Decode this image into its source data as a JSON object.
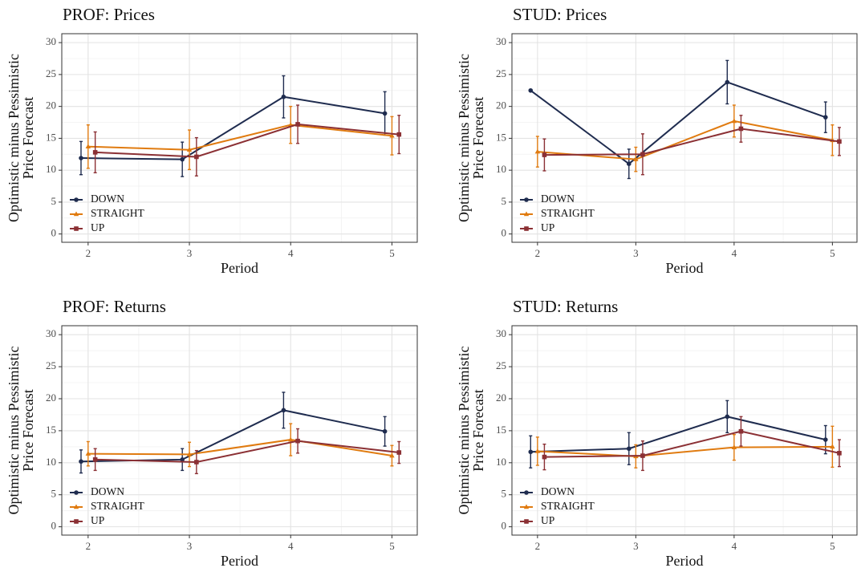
{
  "chart_data": [
    {
      "type": "line",
      "title": "PROF: Prices",
      "x_label": "Period",
      "y_label": [
        "Optimistic minus Pessimistic",
        "Price Forecast"
      ],
      "x": [
        2,
        3,
        4,
        5
      ],
      "xlim": [
        1.74,
        5.25
      ],
      "xticks": [
        2,
        3,
        4,
        5
      ],
      "ylim": [
        -1.3,
        31.4
      ],
      "yticks": [
        0,
        5,
        10,
        15,
        20,
        25,
        30
      ],
      "grid": true,
      "legend": "bottom-left",
      "series": [
        {
          "name": "DOWN",
          "color": "#1f2c4f",
          "marker": "circle",
          "values": [
            11.9,
            11.7,
            21.5,
            18.9
          ],
          "errors": [
            2.6,
            2.7,
            3.3,
            3.4
          ]
        },
        {
          "name": "STRAIGHT",
          "color": "#e07b10",
          "marker": "triangle",
          "values": [
            13.7,
            13.2,
            17.1,
            15.4
          ],
          "errors": [
            3.4,
            3.1,
            2.9,
            3.0
          ]
        },
        {
          "name": "UP",
          "color": "#8b3034",
          "marker": "square",
          "values": [
            12.8,
            12.1,
            17.2,
            15.6
          ],
          "errors": [
            3.2,
            3.0,
            3.0,
            3.0
          ]
        }
      ]
    },
    {
      "type": "line",
      "title": "STUD: Prices",
      "x_label": "Period",
      "y_label": [
        "Optimistic minus Pessimistic",
        "Price Forecast"
      ],
      "x": [
        2,
        3,
        4,
        5
      ],
      "xlim": [
        1.74,
        5.25
      ],
      "xticks": [
        2,
        3,
        4,
        5
      ],
      "ylim": [
        -1.3,
        31.4
      ],
      "yticks": [
        0,
        5,
        10,
        15,
        20,
        25,
        30
      ],
      "grid": true,
      "legend": "bottom-left",
      "series": [
        {
          "name": "DOWN",
          "color": "#1f2c4f",
          "marker": "circle",
          "values": [
            22.5,
            11.0,
            23.8,
            18.3
          ],
          "errors": [
            null,
            2.3,
            3.4,
            2.4
          ]
        },
        {
          "name": "STRAIGHT",
          "color": "#e07b10",
          "marker": "triangle",
          "values": [
            12.9,
            11.7,
            17.7,
            14.7
          ],
          "errors": [
            2.4,
            1.9,
            2.5,
            2.4
          ]
        },
        {
          "name": "UP",
          "color": "#8b3034",
          "marker": "square",
          "values": [
            12.4,
            12.5,
            16.5,
            14.5
          ],
          "errors": [
            2.5,
            3.2,
            2.1,
            2.2
          ]
        }
      ]
    },
    {
      "type": "line",
      "title": "PROF: Returns",
      "x_label": "Period",
      "y_label": [
        "Optimistic minus Pessimistic",
        "Price Forecast"
      ],
      "x": [
        2,
        3,
        4,
        5
      ],
      "xlim": [
        1.74,
        5.25
      ],
      "xticks": [
        2,
        3,
        4,
        5
      ],
      "ylim": [
        -1.3,
        31.4
      ],
      "yticks": [
        0,
        5,
        10,
        15,
        20,
        25,
        30
      ],
      "grid": true,
      "legend": "bottom-left",
      "series": [
        {
          "name": "DOWN",
          "color": "#1f2c4f",
          "marker": "circle",
          "values": [
            10.2,
            10.5,
            18.2,
            14.9
          ],
          "errors": [
            1.8,
            1.7,
            2.8,
            2.3
          ]
        },
        {
          "name": "STRAIGHT",
          "color": "#e07b10",
          "marker": "triangle",
          "values": [
            11.4,
            11.3,
            13.6,
            11.1
          ],
          "errors": [
            1.9,
            1.9,
            2.5,
            1.6
          ]
        },
        {
          "name": "UP",
          "color": "#8b3034",
          "marker": "square",
          "values": [
            10.5,
            10.1,
            13.4,
            11.6
          ],
          "errors": [
            1.7,
            1.8,
            1.9,
            1.7
          ]
        }
      ]
    },
    {
      "type": "line",
      "title": "STUD: Returns",
      "x_label": "Period",
      "y_label": [
        "Optimistic minus Pessimistic",
        "Price Forecast"
      ],
      "x": [
        2,
        3,
        4,
        5
      ],
      "xlim": [
        1.74,
        5.25
      ],
      "xticks": [
        2,
        3,
        4,
        5
      ],
      "ylim": [
        -1.3,
        31.4
      ],
      "yticks": [
        0,
        5,
        10,
        15,
        20,
        25,
        30
      ],
      "grid": true,
      "legend": "bottom-left",
      "series": [
        {
          "name": "DOWN",
          "color": "#1f2c4f",
          "marker": "circle",
          "values": [
            11.7,
            12.2,
            17.2,
            13.6
          ],
          "errors": [
            2.5,
            2.5,
            2.5,
            2.2
          ]
        },
        {
          "name": "STRAIGHT",
          "color": "#e07b10",
          "marker": "triangle",
          "values": [
            11.8,
            11.0,
            12.4,
            12.5
          ],
          "errors": [
            2.2,
            1.8,
            2.0,
            3.2
          ]
        },
        {
          "name": "UP",
          "color": "#8b3034",
          "marker": "square",
          "values": [
            10.9,
            11.1,
            14.9,
            11.5
          ],
          "errors": [
            2.0,
            2.3,
            2.3,
            2.1
          ]
        }
      ]
    }
  ]
}
